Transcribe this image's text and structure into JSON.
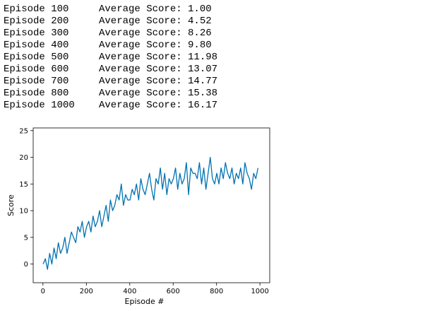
{
  "log": [
    {
      "episode": "Episode 100",
      "score": "Average Score: 1.00"
    },
    {
      "episode": "Episode 200",
      "score": "Average Score: 4.52"
    },
    {
      "episode": "Episode 300",
      "score": "Average Score: 8.26"
    },
    {
      "episode": "Episode 400",
      "score": "Average Score: 9.80"
    },
    {
      "episode": "Episode 500",
      "score": "Average Score: 11.98"
    },
    {
      "episode": "Episode 600",
      "score": "Average Score: 13.07"
    },
    {
      "episode": "Episode 700",
      "score": "Average Score: 14.77"
    },
    {
      "episode": "Episode 800",
      "score": "Average Score: 15.38"
    },
    {
      "episode": "Episode 1000",
      "score": "Average Score: 16.17"
    }
  ],
  "chart_data": {
    "type": "line",
    "title": "",
    "xlabel": "Episode #",
    "ylabel": "Score",
    "xlim": [
      -45,
      1045
    ],
    "ylim": [
      -3.5,
      25.5
    ],
    "xticks": [
      0,
      200,
      400,
      600,
      800,
      1000
    ],
    "yticks": [
      0,
      5,
      10,
      15,
      20,
      25
    ],
    "grid": false,
    "color": "#0072b2",
    "series": [
      {
        "x_start": 1,
        "x_step": 10,
        "values": [
          0,
          1,
          -1,
          2,
          0,
          3,
          1,
          4,
          2,
          3,
          5,
          2,
          4,
          6,
          5,
          4,
          7,
          6,
          8,
          5,
          7,
          8,
          6,
          9,
          7,
          8,
          10,
          7,
          9,
          11,
          8,
          12,
          10,
          11,
          13,
          12,
          15,
          11,
          13,
          12,
          12,
          14,
          13,
          15,
          12,
          16,
          14,
          13,
          15,
          17,
          14,
          12,
          16,
          15,
          18,
          14,
          17,
          13,
          16,
          15,
          16,
          18,
          14,
          17,
          15,
          16,
          19,
          13,
          18,
          17,
          17,
          16,
          19,
          15,
          18,
          14,
          17,
          20,
          16,
          15,
          17,
          15,
          18,
          16,
          19,
          17,
          16,
          18,
          15,
          17,
          16,
          18,
          15,
          19,
          17,
          16,
          14,
          17,
          16,
          18
        ]
      }
    ]
  }
}
